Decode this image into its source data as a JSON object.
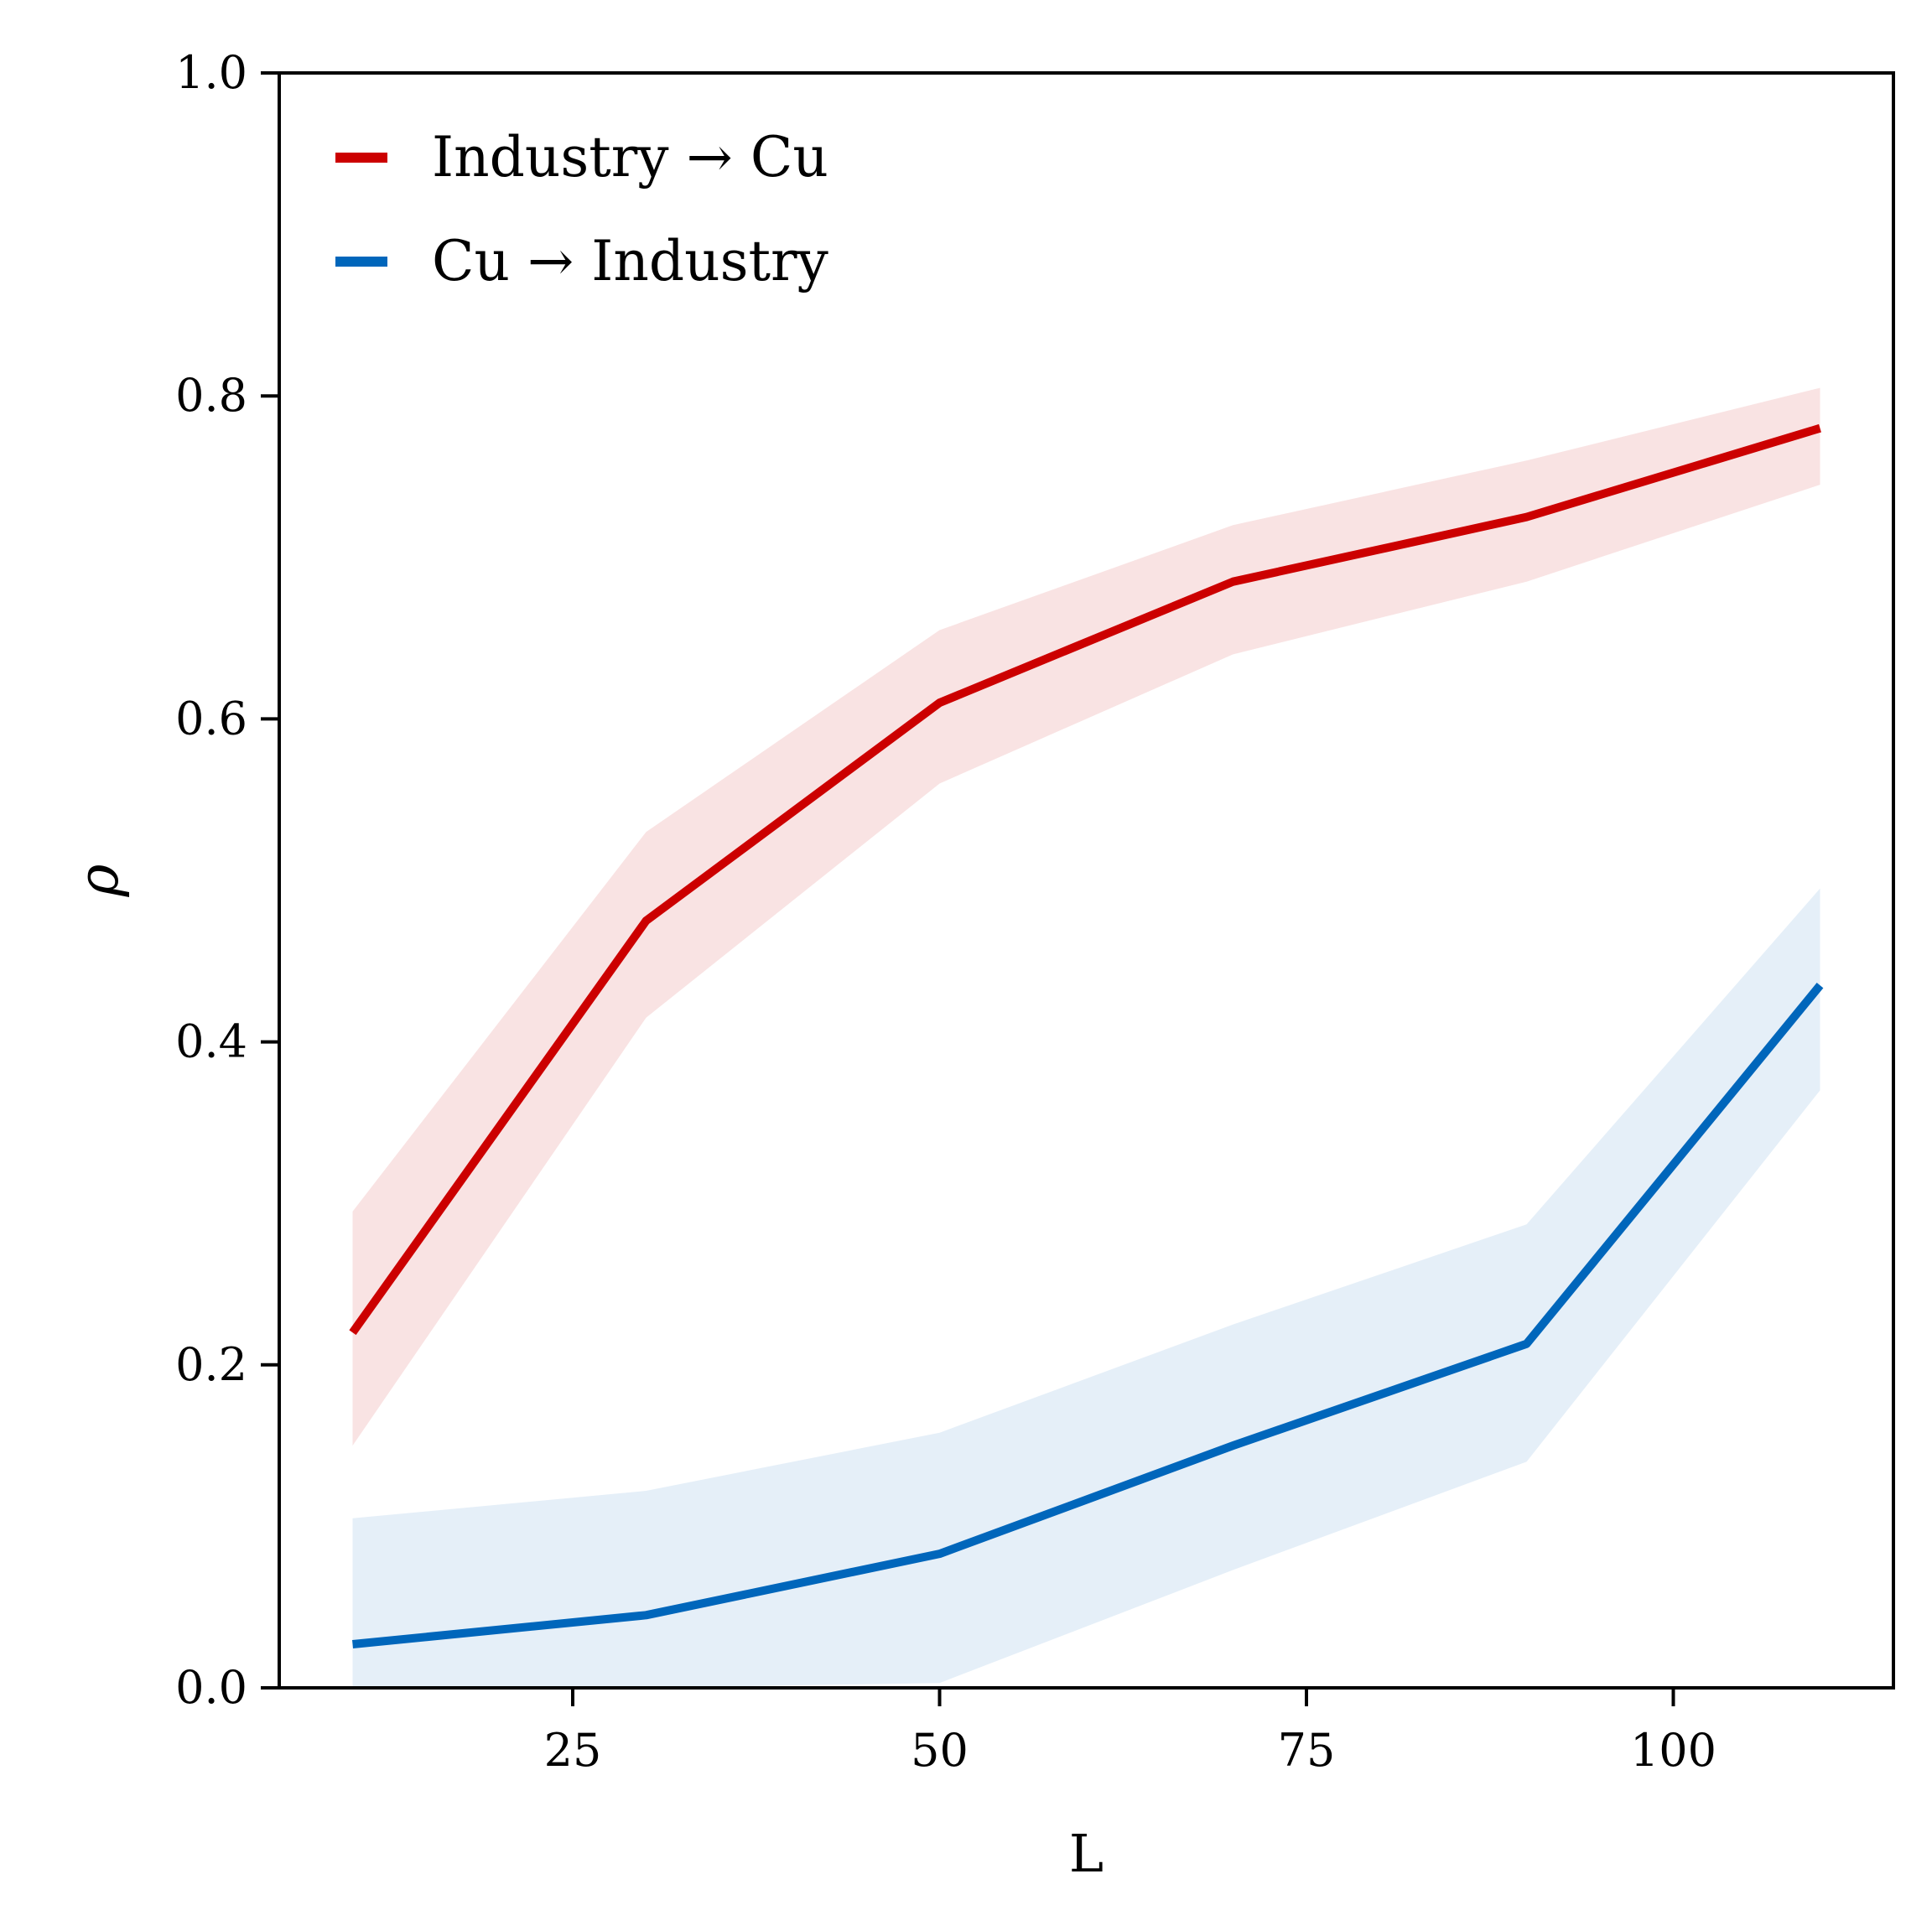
{
  "chart_data": {
    "type": "line",
    "title": "",
    "xlabel": "L",
    "ylabel": "ρ",
    "xlim": [
      5,
      115
    ],
    "ylim": [
      0,
      1
    ],
    "xticks": [
      25,
      50,
      75,
      100
    ],
    "yticks": [
      0.0,
      0.2,
      0.4,
      0.6,
      0.8,
      1.0
    ],
    "ytick_labels": [
      "0.0",
      "0.2",
      "0.4",
      "0.6",
      "0.8",
      "1.0"
    ],
    "grid": false,
    "legend_position": "top-left",
    "x": [
      10,
      30,
      50,
      70,
      90,
      110
    ],
    "series": [
      {
        "name": "Industry → Cu",
        "color": "#cc0000",
        "band_color": "#f9e3e3",
        "values": [
          0.22,
          0.475,
          0.61,
          0.685,
          0.725,
          0.78
        ],
        "lower": [
          0.15,
          0.415,
          0.56,
          0.64,
          0.685,
          0.745
        ],
        "upper": [
          0.295,
          0.53,
          0.655,
          0.72,
          0.76,
          0.805
        ]
      },
      {
        "name": "Cu → Industry",
        "color": "#0066bb",
        "band_color": "#e5eff8",
        "values": [
          0.027,
          0.045,
          0.083,
          0.15,
          0.213,
          0.435
        ],
        "lower": [
          0.0,
          0.0,
          0.003,
          0.073,
          0.14,
          0.37
        ],
        "upper": [
          0.105,
          0.122,
          0.158,
          0.225,
          0.287,
          0.495
        ]
      }
    ]
  }
}
